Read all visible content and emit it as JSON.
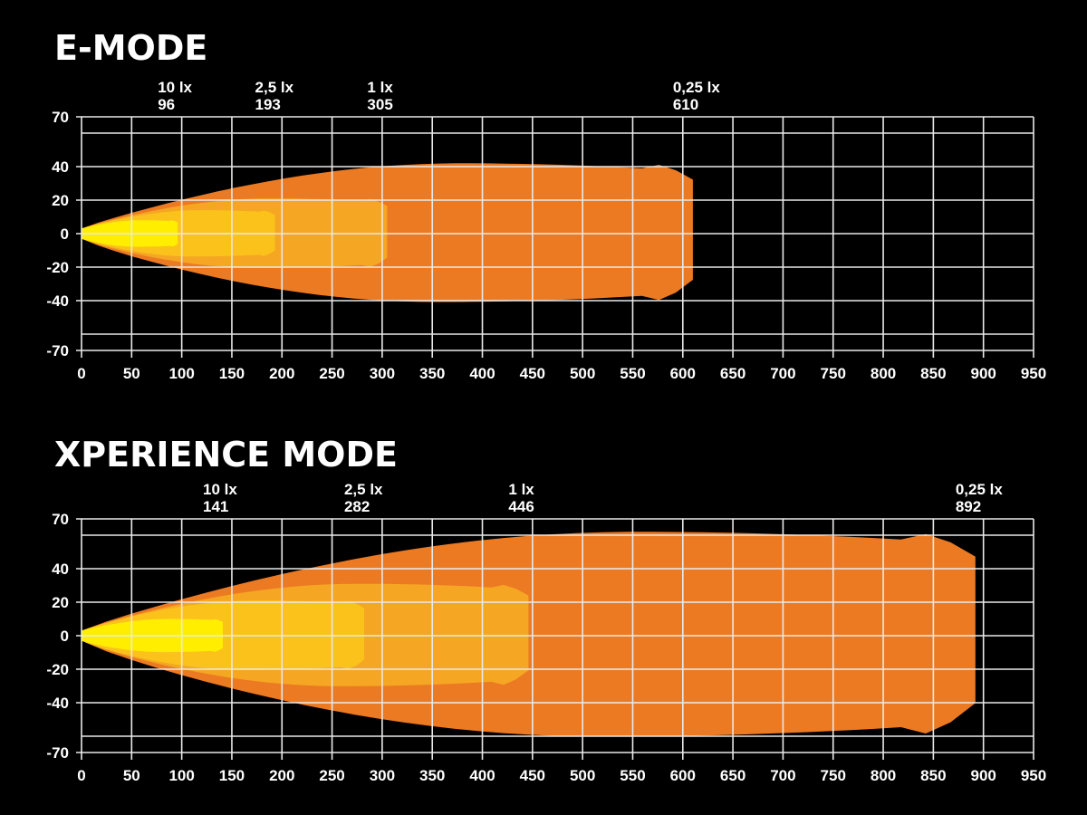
{
  "chart_data": [
    {
      "type": "area",
      "title": "E-MODE",
      "xlabel": "",
      "ylabel": "",
      "xlim": [
        0,
        950
      ],
      "ylim": [
        -70,
        70
      ],
      "x_ticks": [
        0,
        50,
        100,
        150,
        200,
        250,
        300,
        350,
        400,
        450,
        500,
        550,
        600,
        650,
        700,
        750,
        800,
        850,
        900,
        950
      ],
      "y_ticks": [
        70,
        40,
        20,
        0,
        -20,
        -40,
        -70
      ],
      "grid": true,
      "markers": [
        {
          "lux": "10 lx",
          "distance": "96",
          "x": 96
        },
        {
          "lux": "2,5 lx",
          "distance": "193",
          "x": 193
        },
        {
          "lux": "1 lx",
          "distance": "305",
          "x": 305
        },
        {
          "lux": "0,25 lx",
          "distance": "610",
          "x": 610
        }
      ],
      "zones": [
        {
          "lux": 0.25,
          "color": "#ec7a22",
          "reach": 610,
          "max_spread": 42
        },
        {
          "lux": 1,
          "color": "#f5a623",
          "reach": 305,
          "max_spread": 21
        },
        {
          "lux": 2.5,
          "color": "#fbc21b",
          "reach": 193,
          "max_spread": 14
        },
        {
          "lux": 10,
          "color": "#ffee00",
          "reach": 96,
          "max_spread": 8
        }
      ]
    },
    {
      "type": "area",
      "title": "XPERIENCE MODE",
      "xlabel": "",
      "ylabel": "",
      "xlim": [
        0,
        950
      ],
      "ylim": [
        -70,
        70
      ],
      "x_ticks": [
        0,
        50,
        100,
        150,
        200,
        250,
        300,
        350,
        400,
        450,
        500,
        550,
        600,
        650,
        700,
        750,
        800,
        850,
        900,
        950
      ],
      "y_ticks": [
        70,
        40,
        20,
        0,
        -20,
        -40,
        -70
      ],
      "grid": true,
      "markers": [
        {
          "lux": "10 lx",
          "distance": "141",
          "x": 141
        },
        {
          "lux": "2,5 lx",
          "distance": "282",
          "x": 282
        },
        {
          "lux": "1 lx",
          "distance": "446",
          "x": 446
        },
        {
          "lux": "0,25 lx",
          "distance": "892",
          "x": 892
        }
      ],
      "zones": [
        {
          "lux": 0.25,
          "color": "#ec7a22",
          "reach": 892,
          "max_spread": 62
        },
        {
          "lux": 1,
          "color": "#f5a623",
          "reach": 446,
          "max_spread": 31
        },
        {
          "lux": 2.5,
          "color": "#fbc21b",
          "reach": 282,
          "max_spread": 21
        },
        {
          "lux": 10,
          "color": "#ffee00",
          "reach": 141,
          "max_spread": 10
        }
      ]
    }
  ]
}
